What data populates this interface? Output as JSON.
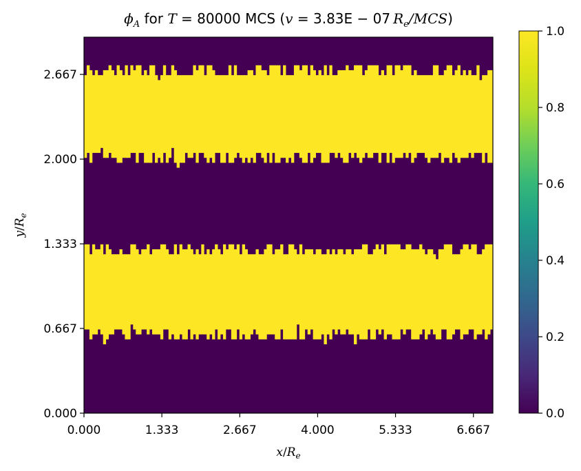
{
  "chart_data": {
    "type": "heatmap",
    "title": {
      "prefix": "ϕ",
      "prefix_sub": "A",
      "text_for": " for ",
      "t_var": "T",
      "t_value": " = 80000",
      "units": " MCS (",
      "v_var": "v",
      "v_value": " = 3.83E − 07",
      "r_var": "R",
      "r_sub": "e",
      "per": "/MCS",
      "close": ")"
    },
    "xlabel": {
      "var": "x",
      "slash": "/",
      "r": "R",
      "sub": "e"
    },
    "ylabel": {
      "var": "y",
      "slash": "/",
      "r": "R",
      "sub": "e"
    },
    "xlim": [
      0,
      7.0
    ],
    "ylim": [
      0,
      2.96
    ],
    "xticks": [
      "0.000",
      "1.333",
      "2.667",
      "4.000",
      "5.333",
      "6.667"
    ],
    "xtick_values": [
      0,
      1.333,
      2.667,
      4.0,
      5.333,
      6.667
    ],
    "yticks": [
      "0.000",
      "0.667",
      "1.333",
      "2.000",
      "2.667"
    ],
    "ytick_values": [
      0,
      0.667,
      1.333,
      2.0,
      2.667
    ],
    "colormap": "viridis",
    "vmin": 0.0,
    "vmax": 1.0,
    "colorbar_ticks": [
      "0.0",
      "0.2",
      "0.4",
      "0.6",
      "0.8",
      "1.0"
    ],
    "colorbar_values": [
      0.0,
      0.2,
      0.4,
      0.6,
      0.8,
      1.0
    ],
    "low_color": "#440154",
    "high_color": "#fde725",
    "grid_cols": 150,
    "grid_rows": 76,
    "phase_bands": [
      {
        "value": 1.0,
        "y_from": 0.62,
        "y_to": 1.29,
        "edge_roughness": 0.06
      },
      {
        "value": 1.0,
        "y_from": 2.01,
        "y_to": 2.7,
        "edge_roughness": 0.06
      }
    ],
    "background_value": 0.0,
    "grid": false
  }
}
